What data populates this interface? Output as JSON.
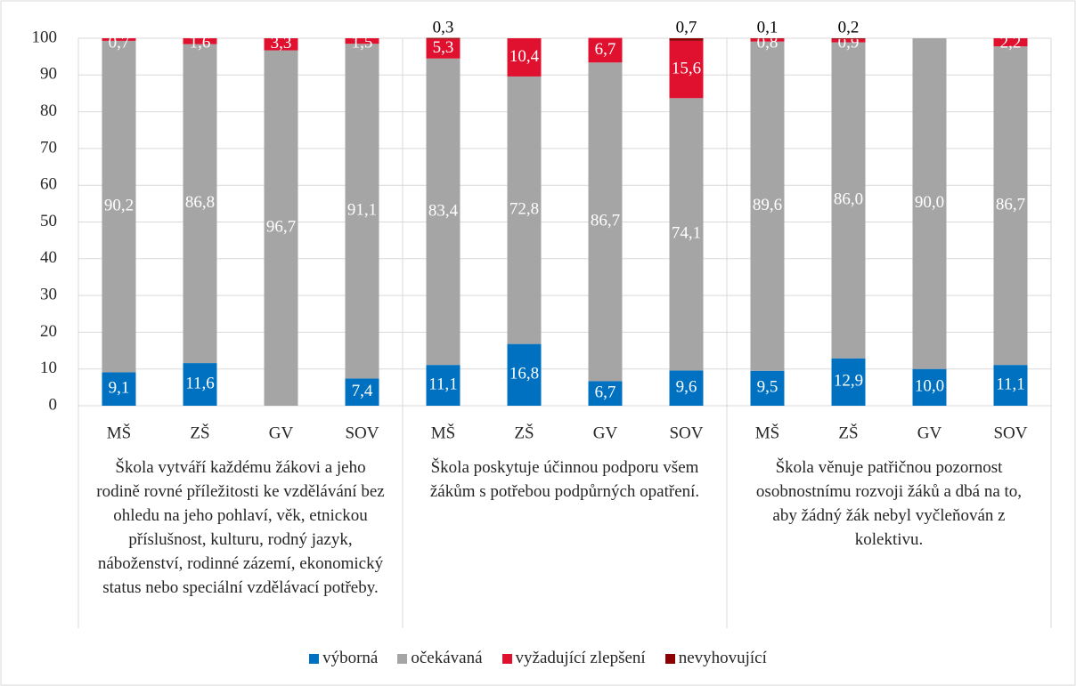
{
  "chart_data": {
    "type": "stacked_bar",
    "categories": [
      "MŠ",
      "ZŠ",
      "GV",
      "SOV",
      "MŠ",
      "ZŠ",
      "GV",
      "SOV",
      "MŠ",
      "ZŠ",
      "GV",
      "SOV"
    ],
    "group_labels": [
      "Škola vytváří každému žákovi a jeho rodině rovné příležitosti ke vzdělávání bez ohledu na jeho pohlaví, věk, etnickou příslušnost, kulturu, rodný jazyk, náboženství, rodinné zázemí, ekonomický status nebo speciální vzdělávací potřeby.",
      "Škola poskytuje účinnou podporu všem žákům s potřebou podpůrných opatření.",
      "Škola věnuje patřičnou pozornost osobnostnímu rozvoji žáků a dbá na to, aby žádný žák nebyl vyčleňován z kolektivu."
    ],
    "series": [
      {
        "name": "výborná",
        "color": "#0070c0",
        "values": [
          9.1,
          11.6,
          null,
          7.4,
          11.1,
          16.8,
          6.7,
          9.6,
          9.5,
          12.9,
          10.0,
          11.1
        ],
        "value_labels": [
          "9,1",
          "11,6",
          null,
          "7,4",
          "11,1",
          "16,8",
          "6,7",
          "9,6",
          "9,5",
          "12,9",
          "10,0",
          "11,1"
        ]
      },
      {
        "name": "očekávaná",
        "color": "#a5a5a5",
        "values": [
          90.2,
          86.8,
          96.7,
          91.1,
          83.4,
          72.8,
          86.7,
          74.1,
          89.6,
          86.0,
          90.0,
          86.7
        ],
        "value_labels": [
          "90,2",
          "86,8",
          "96,7",
          "91,1",
          "83,4",
          "72,8",
          "86,7",
          "74,1",
          "89,6",
          "86,0",
          "90,0",
          "86,7"
        ]
      },
      {
        "name": "vyžadující zlepšení",
        "color": "#e0102f",
        "values": [
          0.7,
          1.6,
          3.3,
          1.5,
          5.3,
          10.4,
          6.7,
          15.6,
          0.8,
          0.9,
          null,
          2.2
        ],
        "value_labels": [
          "0,7",
          "1,6",
          "3,3",
          "1,5",
          "5,3",
          "10,4",
          "6,7",
          "15,6",
          "0,8",
          "0,9",
          null,
          "2,2"
        ]
      },
      {
        "name": "nevyhovující",
        "color": "#8b0000",
        "values": [
          null,
          null,
          null,
          null,
          0.3,
          null,
          null,
          0.7,
          0.1,
          0.2,
          null,
          null
        ],
        "value_labels": [
          null,
          null,
          null,
          null,
          "0,3",
          null,
          null,
          "0,7",
          "0,1",
          "0,2",
          null,
          null
        ]
      }
    ],
    "ylim": [
      0,
      100
    ],
    "yticks": [
      0,
      10,
      20,
      30,
      40,
      50,
      60,
      70,
      80,
      90,
      100
    ],
    "grid": true
  }
}
